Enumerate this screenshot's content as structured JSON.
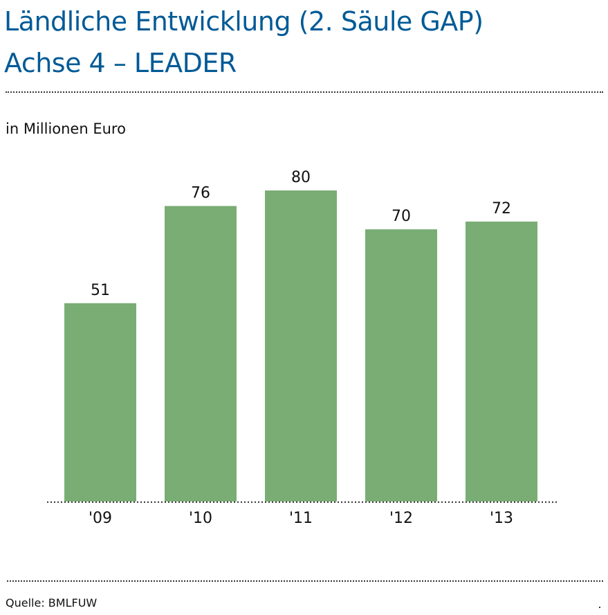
{
  "title_line1": "Ländliche Entwicklung (2. Säule GAP)",
  "title_line2": "Achse 4 – LEADER",
  "unit_label": "in Millionen Euro",
  "source": "Quelle: BMLFUW",
  "colors": {
    "title": "#005a96",
    "bar": "#79ad74"
  },
  "chart_data": {
    "type": "bar",
    "title": "Ländliche Entwicklung (2. Säule GAP) Achse 4 – LEADER",
    "xlabel": "",
    "ylabel": "in Millionen Euro",
    "categories": [
      "'09",
      "'10",
      "'11",
      "'12",
      "'13"
    ],
    "values": [
      51,
      76,
      80,
      70,
      72
    ],
    "ylim": [
      0,
      80
    ],
    "grid": false
  }
}
